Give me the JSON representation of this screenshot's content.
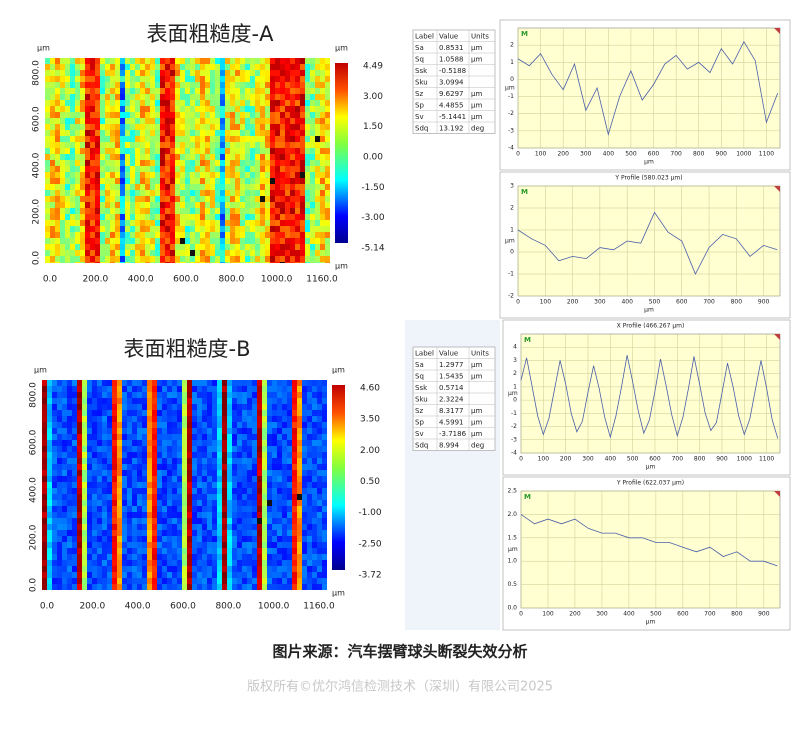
{
  "panels": [
    {
      "title": "表面粗糙度-A",
      "map": {
        "unit": "μm",
        "y_ticks": [
          "800.0",
          "600.0",
          "400.0",
          "200.0",
          "0.0"
        ],
        "x_ticks": [
          "0.0",
          "200.0",
          "400.0",
          "600.0",
          "800.0",
          "1000.0",
          "1160.0"
        ],
        "scale_labels": [
          "4.49",
          "3.00",
          "1.50",
          "0.00",
          "-1.50",
          "-3.00",
          "-5.14"
        ]
      },
      "table": {
        "header": [
          "Label",
          "Value",
          "Units"
        ],
        "rows": [
          [
            "Sa",
            "0.8531",
            "μm"
          ],
          [
            "Sq",
            "1.0588",
            "μm"
          ],
          [
            "Ssk",
            "-0.5188"
          ],
          [
            "Sku",
            "3.0994"
          ],
          [
            "Sz",
            "9.6297",
            "μm"
          ],
          [
            "Sp",
            "4.4855",
            "μm"
          ],
          [
            "Sv",
            "-5.1441",
            "μm"
          ],
          [
            "Sdq",
            "13.192",
            "deg"
          ]
        ]
      },
      "profiles": [
        {
          "badge": "M",
          "x_label": "μm",
          "color": "#4a5fa8",
          "xlim": [
            0,
            1160
          ],
          "ylim": [
            -4,
            3
          ],
          "xticks": [
            0,
            100,
            200,
            300,
            400,
            500,
            600,
            700,
            800,
            900,
            1000,
            1100
          ],
          "yticks": [
            -4,
            -3,
            -2,
            -1,
            0,
            1,
            2
          ],
          "x": [
            0,
            50,
            100,
            150,
            200,
            250,
            300,
            350,
            400,
            450,
            500,
            550,
            600,
            650,
            700,
            750,
            800,
            850,
            900,
            950,
            1000,
            1050,
            1100,
            1150
          ],
          "values": [
            1.2,
            0.8,
            1.5,
            0.3,
            -0.6,
            0.9,
            -1.8,
            -0.5,
            -3.2,
            -1.0,
            0.5,
            -1.2,
            -0.3,
            0.9,
            1.4,
            0.6,
            1.0,
            0.4,
            1.8,
            0.9,
            2.2,
            1.1,
            -2.5,
            -0.8
          ]
        },
        {
          "title": "Y Profile (580.023 μm)",
          "badge": "M",
          "x_label": "μm",
          "color": "#4a5fa8",
          "xlim": [
            0,
            960
          ],
          "ylim": [
            -2,
            3
          ],
          "xticks": [
            0,
            100,
            200,
            300,
            400,
            500,
            600,
            700,
            800,
            900
          ],
          "yticks": [
            -2,
            -1,
            0,
            1,
            2,
            3
          ],
          "x": [
            0,
            50,
            100,
            150,
            200,
            250,
            300,
            350,
            400,
            450,
            500,
            550,
            600,
            650,
            700,
            750,
            800,
            850,
            900,
            950
          ],
          "values": [
            1.0,
            0.6,
            0.3,
            -0.4,
            -0.2,
            -0.3,
            0.2,
            0.1,
            0.5,
            0.4,
            1.8,
            0.9,
            0.5,
            -1.0,
            0.2,
            0.8,
            0.6,
            -0.2,
            0.3,
            0.1
          ]
        }
      ]
    },
    {
      "title": "表面粗糙度-B",
      "map": {
        "unit": "μm",
        "y_ticks": [
          "800.0",
          "600.0",
          "400.0",
          "200.0",
          "0.0"
        ],
        "x_ticks": [
          "0.0",
          "200.0",
          "400.0",
          "600.0",
          "800.0",
          "1000.0",
          "1160.0"
        ],
        "scale_labels": [
          "4.60",
          "3.50",
          "2.00",
          "0.50",
          "-1.00",
          "-2.50",
          "-3.72"
        ]
      },
      "table": {
        "header": [
          "Label",
          "Value",
          "Units"
        ],
        "rows": [
          [
            "Sa",
            "1.2977",
            "μm"
          ],
          [
            "Sq",
            "1.5435",
            "μm"
          ],
          [
            "Ssk",
            "0.5714"
          ],
          [
            "Sku",
            "2.3224"
          ],
          [
            "Sz",
            "8.3177",
            "μm"
          ],
          [
            "Sp",
            "4.5991",
            "μm"
          ],
          [
            "Sv",
            "-3.7186",
            "μm"
          ],
          [
            "Sdq",
            "8.994",
            "deg"
          ]
        ]
      },
      "profiles": [
        {
          "title": "X Profile (466.267 μm)",
          "badge": "M",
          "x_label": "μm",
          "color": "#4a5fa8",
          "xlim": [
            0,
            1160
          ],
          "ylim": [
            -4,
            5
          ],
          "xticks": [
            0,
            100,
            200,
            300,
            400,
            500,
            600,
            700,
            800,
            900,
            1000,
            1100
          ],
          "yticks": [
            -4,
            -3,
            -2,
            -1,
            0,
            1,
            2,
            3,
            4
          ],
          "x": [
            0,
            25,
            50,
            75,
            100,
            125,
            150,
            175,
            200,
            225,
            250,
            275,
            300,
            325,
            350,
            375,
            400,
            425,
            450,
            475,
            500,
            525,
            550,
            575,
            600,
            625,
            650,
            675,
            700,
            725,
            750,
            775,
            800,
            825,
            850,
            875,
            900,
            925,
            950,
            975,
            1000,
            1025,
            1050,
            1075,
            1100,
            1125,
            1150
          ],
          "values": [
            1.5,
            3.2,
            1.0,
            -1.2,
            -2.6,
            -1.4,
            0.8,
            3.0,
            1.2,
            -1.0,
            -2.4,
            -1.6,
            0.6,
            2.6,
            0.9,
            -1.3,
            -2.8,
            -1.2,
            1.0,
            3.4,
            1.4,
            -0.8,
            -2.5,
            -1.5,
            0.7,
            3.1,
            1.1,
            -1.1,
            -2.7,
            -1.3,
            0.9,
            3.3,
            1.2,
            -1.0,
            -2.3,
            -1.7,
            0.5,
            2.8,
            1.0,
            -1.2,
            -2.6,
            -1.4,
            0.8,
            3.0,
            0.9,
            -1.5,
            -2.9
          ]
        },
        {
          "title": "Y Profile (622.037 μm)",
          "badge": "M",
          "x_label": "μm",
          "color": "#4a5fa8",
          "xlim": [
            0,
            960
          ],
          "ylim": [
            0,
            2.5
          ],
          "xticks": [
            0,
            100,
            200,
            300,
            400,
            500,
            600,
            700,
            800,
            900
          ],
          "yticks": [
            {
              "value": 0,
              "label": "0.0"
            },
            0.5,
            {
              "value": 1,
              "label": "1.0"
            },
            1.5,
            {
              "value": 2,
              "label": "2.0"
            },
            2.5
          ],
          "x": [
            0,
            50,
            100,
            150,
            200,
            250,
            300,
            350,
            400,
            450,
            500,
            550,
            600,
            650,
            700,
            750,
            800,
            850,
            900,
            950
          ],
          "values": [
            2.0,
            1.8,
            1.9,
            1.8,
            1.9,
            1.7,
            1.6,
            1.6,
            1.5,
            1.5,
            1.4,
            1.4,
            1.3,
            1.2,
            1.3,
            1.1,
            1.2,
            1.0,
            1.0,
            0.9
          ]
        }
      ]
    }
  ],
  "caption": "图片来源：汽车摆臂球头断裂失效分析",
  "copyright": "版权所有©优尔鸿信检测技术（深圳）有限公司2025"
}
